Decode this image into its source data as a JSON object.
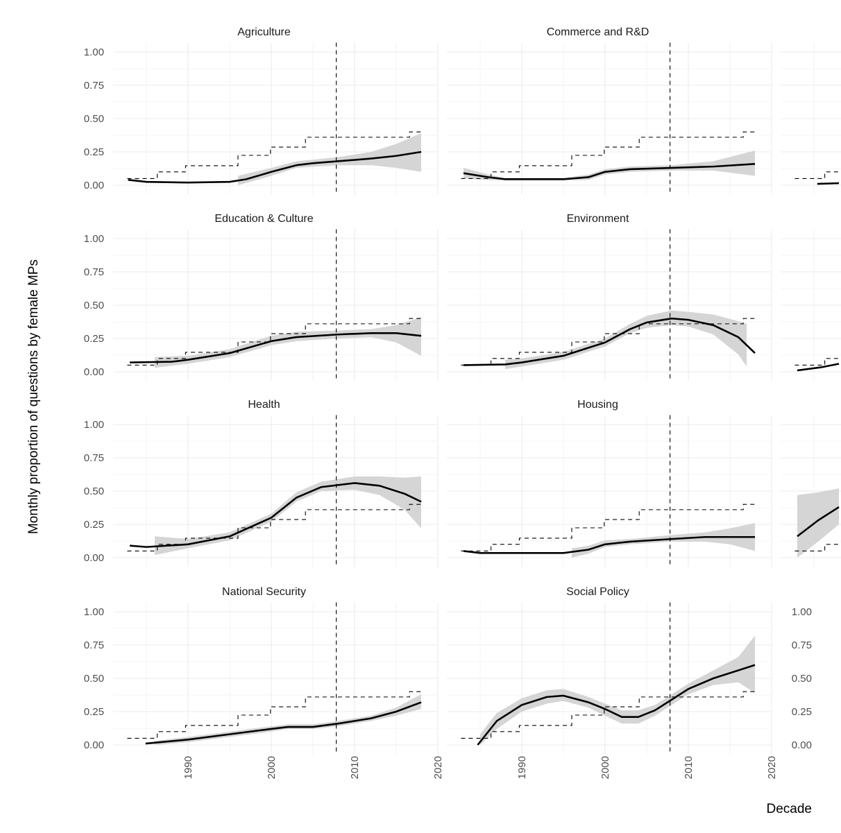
{
  "chart_data": {
    "type": "line",
    "layout": "facet-grid",
    "xlabel": "Decade",
    "ylabel": "Monthly proportion of questions by female MPs",
    "xlim": [
      1981,
      2020
    ],
    "ylim": [
      0,
      1
    ],
    "x_ticks": [
      "1990",
      "2000",
      "2010",
      "2020"
    ],
    "y_ticks": [
      "0.00",
      "0.25",
      "0.50",
      "0.75",
      "1.00"
    ],
    "grid": true,
    "vline_x": 2007.8,
    "reference_step": [
      [
        1982.7,
        0.05
      ],
      [
        1986.3,
        0.1
      ],
      [
        1989.7,
        0.146
      ],
      [
        1996.0,
        0.224
      ],
      [
        1999.9,
        0.286
      ],
      [
        2004.1,
        0.36
      ],
      [
        2016.6,
        0.4
      ],
      [
        2018.1,
        0.4
      ]
    ],
    "colors": {
      "line": "#000000",
      "band": "#d3d3d3",
      "grid": "#ebebeb"
    },
    "panels": [
      {
        "title": "Agriculture",
        "row": 0,
        "col": 0,
        "fit": [
          [
            1982.8,
            0.04
          ],
          [
            1985,
            0.025
          ],
          [
            1990,
            0.02
          ],
          [
            1995,
            0.025
          ],
          [
            1997,
            0.045
          ],
          [
            2000,
            0.1
          ],
          [
            2003,
            0.15
          ],
          [
            2005,
            0.165
          ],
          [
            2008,
            0.18
          ],
          [
            2012,
            0.2
          ],
          [
            2015,
            0.22
          ],
          [
            2018,
            0.25
          ]
        ],
        "band": [
          [
            1996,
            0.0,
            0.07
          ],
          [
            2000,
            0.07,
            0.13
          ],
          [
            2003,
            0.13,
            0.18
          ],
          [
            2008,
            0.15,
            0.21
          ],
          [
            2012,
            0.15,
            0.25
          ],
          [
            2015,
            0.13,
            0.31
          ],
          [
            2018,
            0.1,
            0.39
          ]
        ]
      },
      {
        "title": "Commerce and R&D",
        "row": 0,
        "col": 1,
        "fit": [
          [
            1983,
            0.09
          ],
          [
            1986,
            0.06
          ],
          [
            1988,
            0.045
          ],
          [
            1995,
            0.045
          ],
          [
            1998,
            0.06
          ],
          [
            2000,
            0.1
          ],
          [
            2003,
            0.12
          ],
          [
            2008,
            0.13
          ],
          [
            2013,
            0.14
          ],
          [
            2018,
            0.16
          ]
        ],
        "band": [
          [
            1983,
            0.05,
            0.13
          ],
          [
            1986,
            0.04,
            0.08
          ],
          [
            1988,
            0.035,
            0.055
          ],
          [
            1995,
            0.035,
            0.055
          ],
          [
            1998,
            0.04,
            0.08
          ],
          [
            2000,
            0.08,
            0.12
          ],
          [
            2003,
            0.1,
            0.14
          ],
          [
            2008,
            0.11,
            0.15
          ],
          [
            2013,
            0.11,
            0.18
          ],
          [
            2018,
            0.07,
            0.26
          ]
        ]
      },
      {
        "title": "",
        "row": 0,
        "col": 2,
        "fit": [
          [
            1985.4,
            0.01
          ],
          [
            1988,
            0.015
          ]
        ],
        "band": []
      },
      {
        "title": "Education & Culture",
        "row": 1,
        "col": 0,
        "fit": [
          [
            1983,
            0.07
          ],
          [
            1988,
            0.075
          ],
          [
            1990,
            0.09
          ],
          [
            1995,
            0.14
          ],
          [
            2000,
            0.23
          ],
          [
            2003,
            0.26
          ],
          [
            2008,
            0.28
          ],
          [
            2012,
            0.29
          ],
          [
            2015,
            0.29
          ],
          [
            2018,
            0.27
          ]
        ],
        "band": [
          [
            1986,
            0.03,
            0.11
          ],
          [
            1990,
            0.06,
            0.12
          ],
          [
            1995,
            0.11,
            0.17
          ],
          [
            2000,
            0.2,
            0.27
          ],
          [
            2003,
            0.23,
            0.3
          ],
          [
            2008,
            0.25,
            0.31
          ],
          [
            2012,
            0.26,
            0.32
          ],
          [
            2015,
            0.22,
            0.35
          ],
          [
            2018,
            0.12,
            0.41
          ]
        ]
      },
      {
        "title": "Environment",
        "row": 1,
        "col": 1,
        "fit": [
          [
            1983,
            0.05
          ],
          [
            1988,
            0.055
          ],
          [
            1990,
            0.07
          ],
          [
            1995,
            0.12
          ],
          [
            2000,
            0.22
          ],
          [
            2003,
            0.32
          ],
          [
            2005,
            0.37
          ],
          [
            2008,
            0.4
          ],
          [
            2010,
            0.39
          ],
          [
            2013,
            0.35
          ],
          [
            2016,
            0.26
          ],
          [
            2018,
            0.14
          ]
        ],
        "band": [
          [
            1988,
            0.02,
            0.09
          ],
          [
            1990,
            0.04,
            0.1
          ],
          [
            1995,
            0.09,
            0.15
          ],
          [
            2000,
            0.19,
            0.25
          ],
          [
            2003,
            0.29,
            0.36
          ],
          [
            2005,
            0.33,
            0.42
          ],
          [
            2008,
            0.35,
            0.46
          ],
          [
            2010,
            0.34,
            0.45
          ],
          [
            2013,
            0.28,
            0.43
          ],
          [
            2016,
            0.13,
            0.38
          ],
          [
            2017,
            0.04,
            0.36
          ]
        ]
      },
      {
        "title": "",
        "row": 1,
        "col": 2,
        "fit": [
          [
            1983,
            0.01
          ],
          [
            1986,
            0.035
          ],
          [
            1988,
            0.06
          ]
        ],
        "band": []
      },
      {
        "title": "Health",
        "row": 2,
        "col": 0,
        "fit": [
          [
            1983,
            0.09
          ],
          [
            1985,
            0.08
          ],
          [
            1990,
            0.1
          ],
          [
            1995,
            0.16
          ],
          [
            2000,
            0.3
          ],
          [
            2003,
            0.45
          ],
          [
            2006,
            0.53
          ],
          [
            2010,
            0.56
          ],
          [
            2013,
            0.54
          ],
          [
            2016,
            0.48
          ],
          [
            2018,
            0.42
          ]
        ],
        "band": [
          [
            1986,
            0.02,
            0.16
          ],
          [
            1990,
            0.07,
            0.14
          ],
          [
            1995,
            0.13,
            0.19
          ],
          [
            2000,
            0.27,
            0.33
          ],
          [
            2003,
            0.42,
            0.49
          ],
          [
            2006,
            0.5,
            0.57
          ],
          [
            2010,
            0.51,
            0.61
          ],
          [
            2013,
            0.47,
            0.61
          ],
          [
            2016,
            0.36,
            0.6
          ],
          [
            2018,
            0.22,
            0.61
          ]
        ]
      },
      {
        "title": "Housing",
        "row": 2,
        "col": 1,
        "fit": [
          [
            1983,
            0.05
          ],
          [
            1985,
            0.035
          ],
          [
            1995,
            0.035
          ],
          [
            1998,
            0.06
          ],
          [
            2000,
            0.1
          ],
          [
            2003,
            0.12
          ],
          [
            2008,
            0.14
          ],
          [
            2012,
            0.155
          ],
          [
            2018,
            0.155
          ]
        ],
        "band": [
          [
            1996,
            0.0,
            0.07
          ],
          [
            1998,
            0.03,
            0.09
          ],
          [
            2000,
            0.08,
            0.13
          ],
          [
            2003,
            0.1,
            0.14
          ],
          [
            2008,
            0.12,
            0.17
          ],
          [
            2012,
            0.12,
            0.19
          ],
          [
            2015,
            0.1,
            0.22
          ],
          [
            2018,
            0.05,
            0.26
          ]
        ]
      },
      {
        "title": "",
        "row": 2,
        "col": 2,
        "fit": [
          [
            1983,
            0.16
          ],
          [
            1985.5,
            0.28
          ],
          [
            1988,
            0.38
          ]
        ],
        "band": [
          [
            1983,
            0.0,
            0.47
          ],
          [
            1985.5,
            0.12,
            0.49
          ],
          [
            1988,
            0.25,
            0.52
          ]
        ]
      },
      {
        "title": "National Security",
        "row": 3,
        "col": 0,
        "fit": [
          [
            1984.9,
            0.01
          ],
          [
            1990,
            0.04
          ],
          [
            1995,
            0.08
          ],
          [
            2000,
            0.12
          ],
          [
            2002,
            0.135
          ],
          [
            2005,
            0.135
          ],
          [
            2008,
            0.16
          ],
          [
            2012,
            0.2
          ],
          [
            2015,
            0.25
          ],
          [
            2018,
            0.32
          ]
        ],
        "band": [
          [
            1986,
            0.0,
            0.03
          ],
          [
            1990,
            0.02,
            0.06
          ],
          [
            1995,
            0.06,
            0.1
          ],
          [
            2000,
            0.1,
            0.14
          ],
          [
            2002,
            0.12,
            0.155
          ],
          [
            2005,
            0.12,
            0.155
          ],
          [
            2008,
            0.14,
            0.18
          ],
          [
            2012,
            0.18,
            0.22
          ],
          [
            2015,
            0.22,
            0.28
          ],
          [
            2018,
            0.27,
            0.38
          ]
        ]
      },
      {
        "title": "Social Policy",
        "row": 3,
        "col": 1,
        "fit": [
          [
            1984.7,
            0.0
          ],
          [
            1987,
            0.18
          ],
          [
            1990,
            0.3
          ],
          [
            1993,
            0.36
          ],
          [
            1995,
            0.37
          ],
          [
            1998,
            0.32
          ],
          [
            2000,
            0.27
          ],
          [
            2002,
            0.21
          ],
          [
            2004,
            0.21
          ],
          [
            2006,
            0.26
          ],
          [
            2008,
            0.34
          ],
          [
            2010,
            0.42
          ],
          [
            2013,
            0.5
          ],
          [
            2016,
            0.56
          ],
          [
            2018,
            0.6
          ]
        ],
        "band": [
          [
            1985,
            0.0,
            0.08
          ],
          [
            1987,
            0.12,
            0.24
          ],
          [
            1990,
            0.25,
            0.35
          ],
          [
            1993,
            0.31,
            0.41
          ],
          [
            1995,
            0.33,
            0.42
          ],
          [
            1998,
            0.28,
            0.36
          ],
          [
            2000,
            0.22,
            0.31
          ],
          [
            2002,
            0.16,
            0.26
          ],
          [
            2004,
            0.16,
            0.26
          ],
          [
            2006,
            0.22,
            0.3
          ],
          [
            2008,
            0.3,
            0.38
          ],
          [
            2010,
            0.38,
            0.46
          ],
          [
            2013,
            0.45,
            0.56
          ],
          [
            2016,
            0.47,
            0.66
          ],
          [
            2018,
            0.39,
            0.82
          ]
        ]
      }
    ]
  }
}
